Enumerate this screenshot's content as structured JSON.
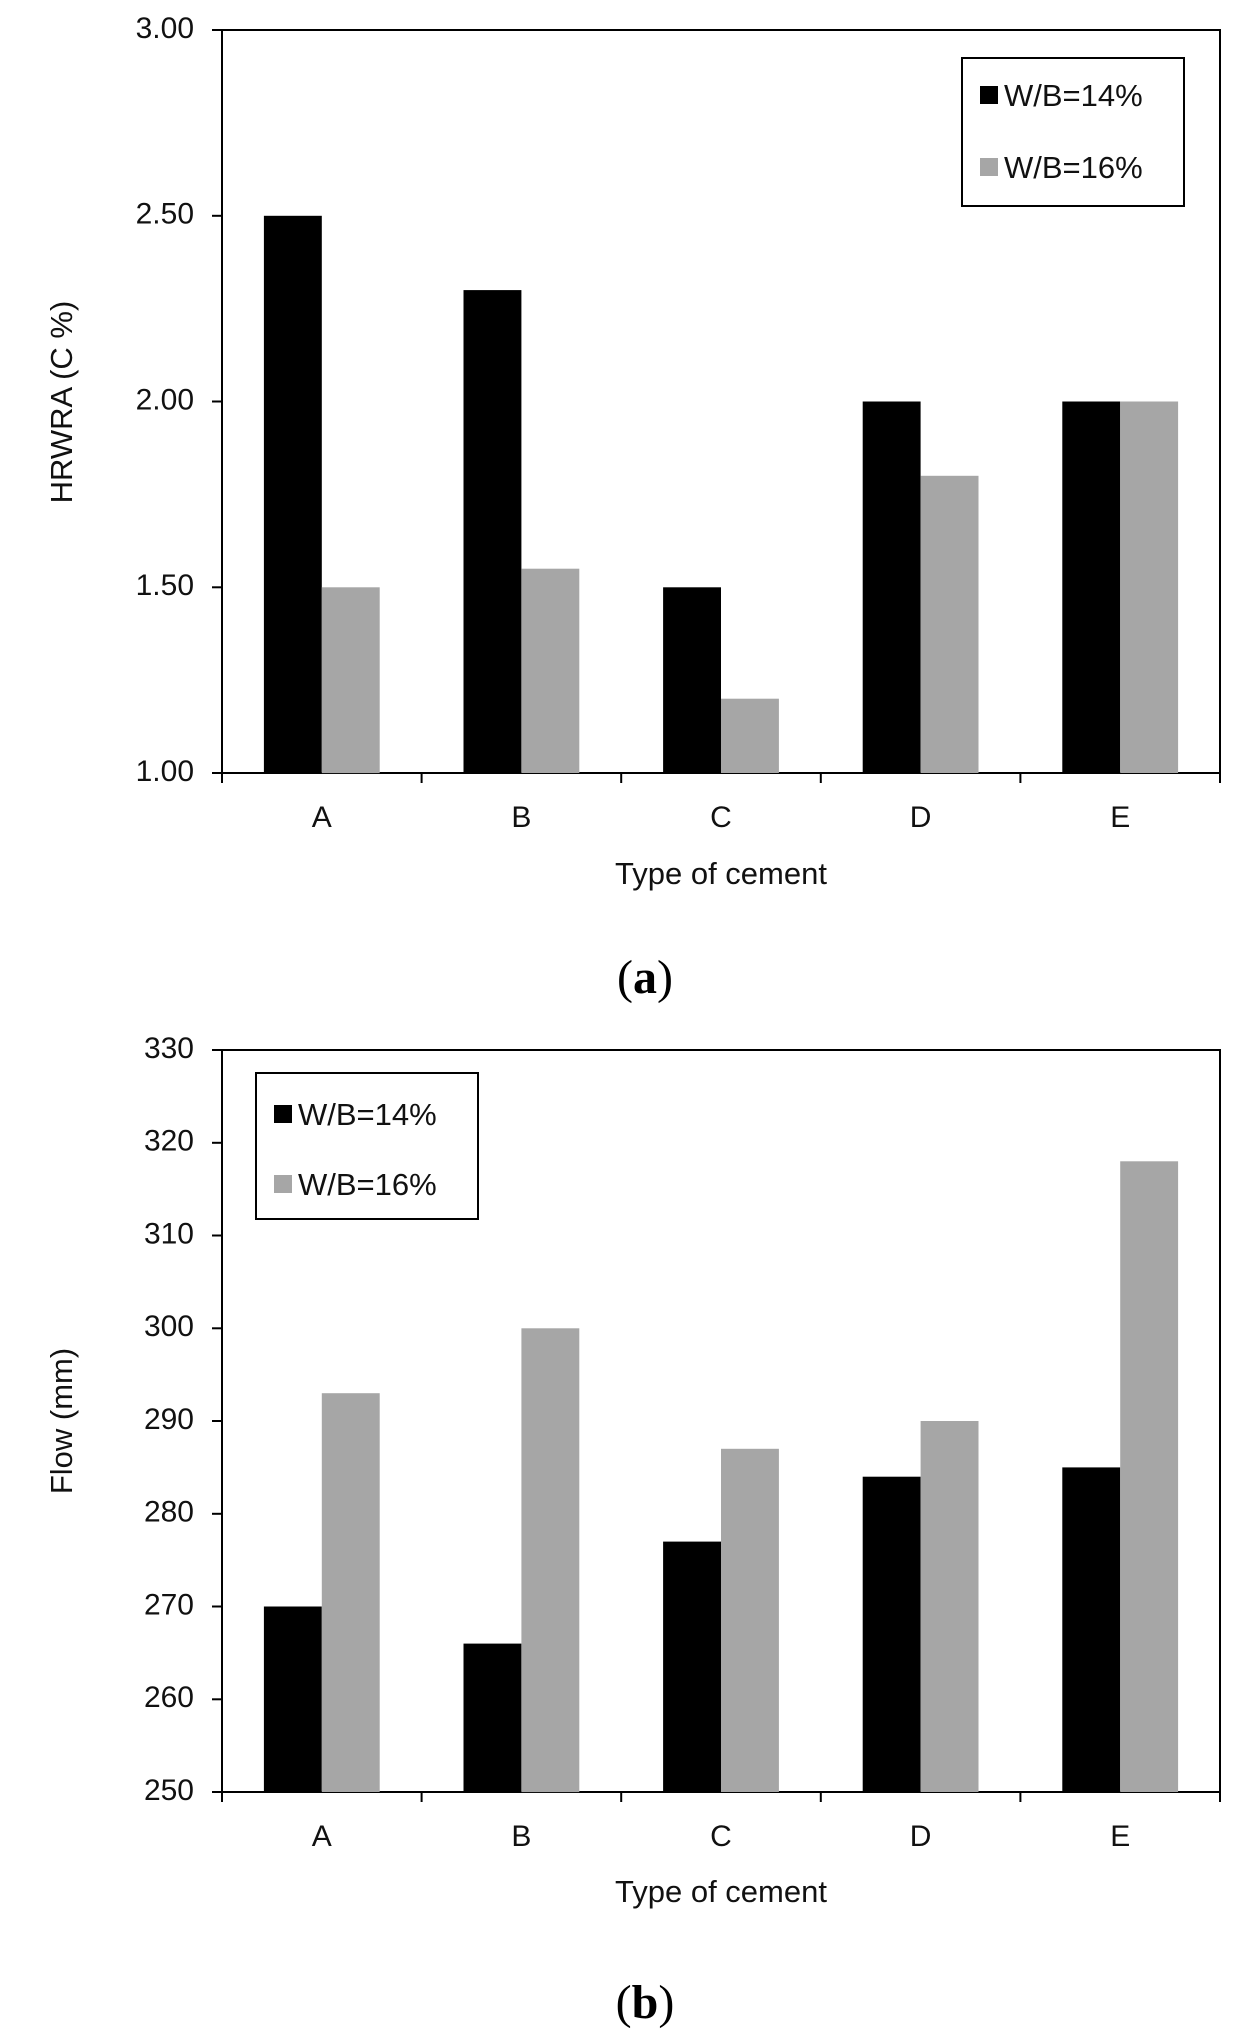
{
  "figure": {
    "background": "#ffffff"
  },
  "chart_data": [
    {
      "id": "a",
      "type": "bar",
      "panel_label": "a",
      "title": "",
      "xlabel": "Type of cement",
      "ylabel": "HRWRA (C %)",
      "categories": [
        "A",
        "B",
        "C",
        "D",
        "E"
      ],
      "ylim": [
        1.0,
        3.0
      ],
      "yticks": [
        1.0,
        1.5,
        2.0,
        2.5,
        3.0
      ],
      "ytick_labels": [
        "1.00",
        "1.50",
        "2.00",
        "2.50",
        "3.00"
      ],
      "grid": false,
      "legend_position": "top-right",
      "series": [
        {
          "name": "W/B=14%",
          "color": "#000000",
          "values": [
            2.5,
            2.3,
            1.5,
            2.0,
            2.0
          ]
        },
        {
          "name": "W/B=16%",
          "color": "#a6a6a6",
          "values": [
            1.5,
            1.55,
            1.2,
            1.8,
            2.0
          ]
        }
      ]
    },
    {
      "id": "b",
      "type": "bar",
      "panel_label": "b",
      "title": "",
      "xlabel": "Type of cement",
      "ylabel": "Flow (mm)",
      "categories": [
        "A",
        "B",
        "C",
        "D",
        "E"
      ],
      "ylim": [
        250,
        330
      ],
      "yticks": [
        250,
        260,
        270,
        280,
        290,
        300,
        310,
        320,
        330
      ],
      "ytick_labels": [
        "250",
        "260",
        "270",
        "280",
        "290",
        "300",
        "310",
        "320",
        "330"
      ],
      "grid": false,
      "legend_position": "top-left",
      "series": [
        {
          "name": "W/B=14%",
          "color": "#000000",
          "values": [
            270,
            266,
            277,
            284,
            285
          ]
        },
        {
          "name": "W/B=16%",
          "color": "#a6a6a6",
          "values": [
            293,
            300,
            287,
            290,
            318
          ]
        }
      ]
    }
  ]
}
